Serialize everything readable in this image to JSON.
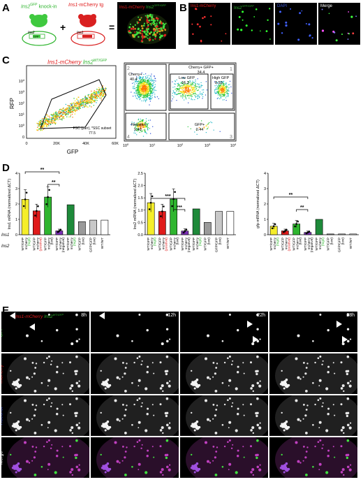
{
  "panelA": {
    "label": "A",
    "knockin_prefix": "Ins2",
    "knockin_sup": "GFP",
    "knockin_suffix": " knock-in",
    "tg_prefix": "Ins1",
    "tg_suffix": "-mCherry tg",
    "plus": "+",
    "equals": "=",
    "gfp_box": "GFP",
    "ins2_label": "Ins2",
    "ins1_label": "Ins1",
    "micro_title_red": "Ins1-mCherry",
    "micro_title_green": "Ins2",
    "micro_title_green_sup": "GFP/GFP"
  },
  "panelB": {
    "label": "B",
    "titles": [
      {
        "text": "Ins1-mCherry",
        "sup": "",
        "color": "#e01b1b"
      },
      {
        "text": "Ins2",
        "sup": "GFP/GFP",
        "color": "#2fb52f"
      },
      {
        "text": "DAPI",
        "sup": "",
        "color": "#3a57d9"
      },
      {
        "text": "Merge",
        "sup": "",
        "color": "#ffffff"
      }
    ]
  },
  "panelC": {
    "label": "C",
    "title_red": "Ins1-mCherry",
    "title_green": "Ins2",
    "title_green_sup": "WT/GFP",
    "left": {
      "ylabel": "RFP",
      "xlabel": "GFP",
      "xticks": [
        "0",
        "20K",
        "40K",
        "60K"
      ],
      "yticks": [
        "0",
        "10",
        "10",
        "10",
        "10",
        "10",
        "10"
      ],
      "ytick_exps": [
        "",
        "0",
        "1",
        "2",
        "3",
        "4",
        ""
      ],
      "gate_text_1": "FSC (parr), *SSC subset",
      "gate_text_2": "77.5"
    },
    "right": {
      "xticks": [
        "10",
        "10",
        "10",
        "10",
        "10"
      ],
      "xtick_exps": [
        "0",
        "1",
        "2",
        "3",
        "4"
      ],
      "gates": [
        {
          "num": "2",
          "name": "Cherry+",
          "value": "40.4"
        },
        {
          "num": "",
          "name": "Cherry+ GFP+",
          "value": "34.4"
        },
        {
          "num": "",
          "name": "Low GFP",
          "value": "16.3"
        },
        {
          "num": "1",
          "name": "High GFP",
          "value": "8.53"
        },
        {
          "num": "4",
          "name": "Negative",
          "value": "9.46"
        },
        {
          "num": "3",
          "name": "GFP+",
          "value": "0.44"
        }
      ]
    }
  },
  "panelD": {
    "label": "D",
    "row_label_ins1": "Ins1",
    "row_label_ins2": "Ins2",
    "sig": [
      "**",
      "**",
      "***",
      "***",
      "**",
      "**"
    ],
    "categories": [
      {
        "genotype": "WT/GFP",
        "mcherry": "mcherry",
        "group": "(high)",
        "color": "#2fb52f"
      },
      {
        "genotype": "WT/GFP",
        "mcherry": "mcherry",
        "group": "(positive)",
        "color": "#e01b1b"
      },
      {
        "genotype": "WT/GFP",
        "mcherry": "mcherry",
        "group": "(low)",
        "color": "#000000"
      },
      {
        "genotype": "WT/GFP",
        "mcherry": "mcherry",
        "group": "(negative)",
        "color": "#000000"
      },
      {
        "genotype": "WT/GFP",
        "mcherry": "mcherry",
        "group": "(high)",
        "color": "#2fb52f"
      },
      {
        "genotype": "WT/GFP",
        "mcherry": "",
        "group": "(low)",
        "color": "#000000"
      },
      {
        "genotype": "GFP/GFP",
        "mcherry": "",
        "group": "(low)",
        "color": "#000000"
      },
      {
        "genotype": "WT/WT",
        "mcherry": "",
        "group": "",
        "color": "#000000"
      }
    ]
  },
  "chart_data": [
    {
      "type": "bar",
      "ylabel": "Ins1 mRNA (normalized ΔCT)",
      "ylim": [
        0,
        4
      ],
      "yticks": [
        0,
        1,
        2,
        3,
        4
      ],
      "series": [
        {
          "values": [
            2.3,
            1.55,
            2.45,
            0.25,
            1.95,
            0.85,
            0.95,
            0.95
          ],
          "colors": [
            "#f5ee2a",
            "#e01b1b",
            "#2fb52f",
            "#7a2fb5",
            "#1e8a3a",
            "#9a9a9a",
            "#c8c8c8",
            "#ffffff"
          ]
        }
      ]
    },
    {
      "type": "bar",
      "ylabel": "Ins2 mRNA (normalized ΔCT)",
      "ylim": [
        0,
        2.5
      ],
      "yticks": [
        0.0,
        0.5,
        1.0,
        1.5,
        2.0,
        2.5
      ],
      "series": [
        {
          "values": [
            1.3,
            0.95,
            1.45,
            0.15,
            1.05,
            0.5,
            0.95,
            0.95
          ],
          "colors": [
            "#f5ee2a",
            "#e01b1b",
            "#2fb52f",
            "#7a2fb5",
            "#1e8a3a",
            "#9a9a9a",
            "#c8c8c8",
            "#ffffff"
          ]
        }
      ]
    },
    {
      "type": "bar",
      "ylabel": "gfp mRNA (normalized ΔCT)",
      "ylim": [
        0,
        4
      ],
      "yticks": [
        0,
        1,
        2,
        3,
        4
      ],
      "series": [
        {
          "values": [
            0.55,
            0.25,
            0.7,
            0.15,
            1.0,
            0.05,
            0.05,
            0.05
          ],
          "colors": [
            "#f5ee2a",
            "#e01b1b",
            "#2fb52f",
            "#7a2fb5",
            "#1e8a3a",
            "#9a9a9a",
            "#c8c8c8",
            "#ffffff"
          ]
        }
      ]
    }
  ],
  "panelE": {
    "label": "E",
    "title_red": "Ins1-mCherry",
    "title_green": "Ins2",
    "title_green_sup": "WT/GFP",
    "times": [
      "8h",
      "12h",
      "22h",
      "28h"
    ],
    "rows": [
      {
        "name": "GFP",
        "color": "#2fb52f"
      },
      {
        "name": "mCherry",
        "color": "#e01b1b"
      },
      {
        "name": "Hoechst",
        "color": "#3a57d9"
      },
      {
        "name": "Merge",
        "color": "#ffffff"
      }
    ]
  }
}
